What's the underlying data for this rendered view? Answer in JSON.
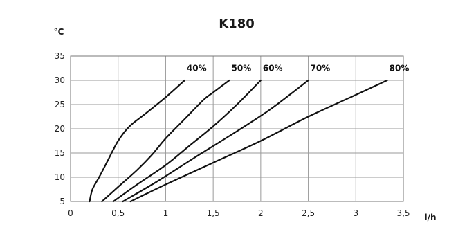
{
  "chart_data": {
    "type": "line",
    "title": "K180",
    "ylabel": "°C",
    "xlabel": "l/h",
    "xlim": [
      0,
      3.5
    ],
    "ylim": [
      5,
      35
    ],
    "x_ticks": [
      "0",
      "0,5",
      "1",
      "1,5",
      "2",
      "2,5",
      "3",
      "3,5"
    ],
    "y_ticks": [
      "5",
      "10",
      "15",
      "20",
      "25",
      "30",
      "35"
    ],
    "grid": true,
    "series": [
      {
        "name": "40%",
        "points": [
          [
            0.2,
            5
          ],
          [
            0.23,
            7.5
          ],
          [
            0.3,
            10
          ],
          [
            0.38,
            13
          ],
          [
            0.5,
            17.5
          ],
          [
            0.62,
            20.5
          ],
          [
            0.78,
            23
          ],
          [
            1.0,
            26.5
          ],
          [
            1.2,
            30
          ]
        ]
      },
      {
        "name": "50%",
        "points": [
          [
            0.33,
            5
          ],
          [
            0.5,
            8
          ],
          [
            0.7,
            11.5
          ],
          [
            0.85,
            14.5
          ],
          [
            1.0,
            18
          ],
          [
            1.2,
            22
          ],
          [
            1.4,
            26
          ],
          [
            1.5,
            27.5
          ],
          [
            1.67,
            30
          ]
        ]
      },
      {
        "name": "60%",
        "points": [
          [
            0.45,
            5
          ],
          [
            0.7,
            8.5
          ],
          [
            1.0,
            12.5
          ],
          [
            1.25,
            16.5
          ],
          [
            1.5,
            20.5
          ],
          [
            1.75,
            25
          ],
          [
            2.0,
            30
          ]
        ]
      },
      {
        "name": "70%",
        "points": [
          [
            0.55,
            5
          ],
          [
            0.9,
            9
          ],
          [
            1.3,
            14
          ],
          [
            1.75,
            19.5
          ],
          [
            2.1,
            24
          ],
          [
            2.5,
            30
          ]
        ]
      },
      {
        "name": "80%",
        "points": [
          [
            0.63,
            5
          ],
          [
            1.0,
            8.5
          ],
          [
            1.5,
            13
          ],
          [
            2.0,
            17.5
          ],
          [
            2.5,
            22.5
          ],
          [
            3.0,
            27
          ],
          [
            3.33,
            30
          ]
        ]
      }
    ]
  }
}
